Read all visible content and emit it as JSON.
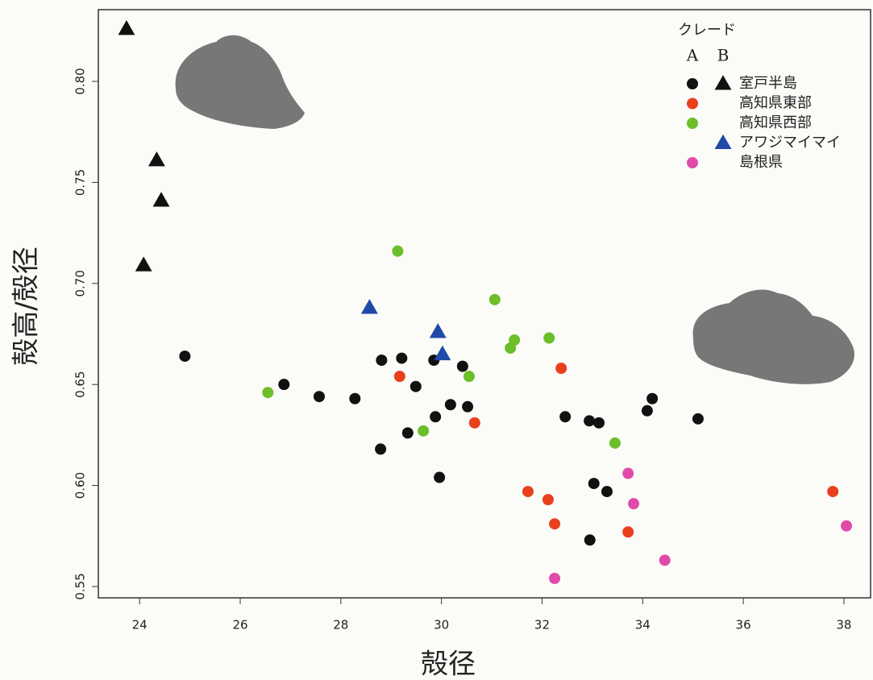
{
  "chart_data": {
    "type": "scatter",
    "x_label": "殻径",
    "y_label": "殻高/殻径",
    "xlim": [
      23.18,
      38.53
    ],
    "ylim": [
      0.5444,
      0.8355
    ],
    "xticks": [
      24,
      26,
      28,
      30,
      32,
      34,
      36,
      38
    ],
    "yticks": [
      0.55,
      {
        "value": 0.6,
        "label": "0.60"
      },
      0.65,
      {
        "value": 0.7,
        "label": "0.70"
      },
      0.75,
      {
        "value": 0.8,
        "label": "0.80"
      }
    ],
    "legend": {
      "title": "クレード",
      "columns": [
        "A",
        "B"
      ],
      "position": "upper right"
    },
    "series": [
      {
        "name": "室戸半島",
        "clade": "A",
        "marker": "circle",
        "color": "#111111",
        "x": [
          24.9,
          26.87,
          27.57,
          28.28,
          28.79,
          28.81,
          29.21,
          29.33,
          29.49,
          29.85,
          29.88,
          29.96,
          30.18,
          30.42,
          30.52,
          32.46,
          32.94,
          33.13,
          33.03,
          33.29,
          32.95,
          34.09,
          34.19,
          35.1
        ],
        "values": [
          0.664,
          0.65,
          0.644,
          0.643,
          0.618,
          0.662,
          0.663,
          0.626,
          0.649,
          0.662,
          0.634,
          0.604,
          0.64,
          0.659,
          0.639,
          0.634,
          0.632,
          0.631,
          0.601,
          0.597,
          0.573,
          0.637,
          0.643,
          0.633
        ]
      },
      {
        "name": "室戸半島",
        "clade": "B",
        "marker": "triangle",
        "color": "#111111",
        "x": [
          23.74,
          24.34,
          24.43,
          24.08
        ],
        "values": [
          0.826,
          0.761,
          0.741,
          0.709
        ]
      },
      {
        "name": "高知県東部",
        "clade": "A",
        "marker": "circle",
        "color": "#e8401c",
        "x": [
          29.17,
          30.66,
          32.38,
          31.72,
          32.12,
          32.25,
          33.71,
          37.78
        ],
        "values": [
          0.654,
          0.631,
          0.658,
          0.597,
          0.593,
          0.581,
          0.577,
          0.597
        ]
      },
      {
        "name": "高知県西部",
        "clade": "A",
        "marker": "circle",
        "color": "#6cbf2a",
        "x": [
          26.55,
          29.13,
          29.64,
          30.55,
          31.06,
          31.37,
          31.45,
          32.14,
          33.45
        ],
        "values": [
          0.646,
          0.716,
          0.627,
          0.654,
          0.692,
          0.668,
          0.672,
          0.673,
          0.621
        ]
      },
      {
        "name": "アワジマイマイ",
        "clade": "B",
        "marker": "triangle",
        "color": "#1f4aa8",
        "x": [
          28.57,
          29.93,
          30.02
        ],
        "values": [
          0.688,
          0.676,
          0.665
        ]
      },
      {
        "name": "島根県",
        "clade": "A",
        "marker": "circle",
        "color": "#e04aa8",
        "x": [
          33.71,
          33.82,
          34.44,
          32.25,
          38.05
        ],
        "values": [
          0.606,
          0.591,
          0.563,
          0.554,
          0.58
        ]
      }
    ]
  }
}
